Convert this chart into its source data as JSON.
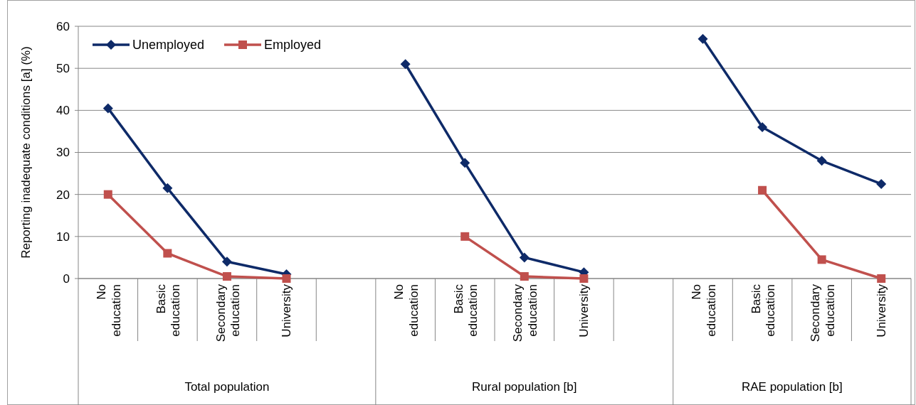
{
  "chart_data": {
    "type": "line",
    "ylabel": "Reporting inadequate conditions [a] (%)",
    "categories": [
      "No education",
      "Basic education",
      "Secondary education",
      "University",
      null,
      "No education",
      "Basic education",
      "Secondary education",
      "University",
      null,
      "No education",
      "Basic education",
      "Secondary education",
      "University"
    ],
    "series": [
      {
        "name": "Unemployed",
        "color": "#0e2a68",
        "marker": "diamond",
        "values": [
          40.5,
          21.5,
          4,
          1,
          null,
          51,
          27.5,
          5,
          1.5,
          null,
          57,
          36,
          28,
          22.5
        ]
      },
      {
        "name": "Employed",
        "color": "#c0504d",
        "marker": "square",
        "values": [
          20,
          6,
          0.5,
          0,
          null,
          null,
          10,
          0.5,
          0,
          null,
          null,
          21,
          4.5,
          0
        ]
      }
    ],
    "annotations": [
      "Total population",
      "Rural population [b]",
      "RAE population [b]"
    ],
    "ylim": [
      0,
      60
    ],
    "yticks": [
      0,
      10,
      20,
      30,
      40,
      50,
      60
    ],
    "grid": "y",
    "legend": "top left",
    "line_style": "solid"
  }
}
